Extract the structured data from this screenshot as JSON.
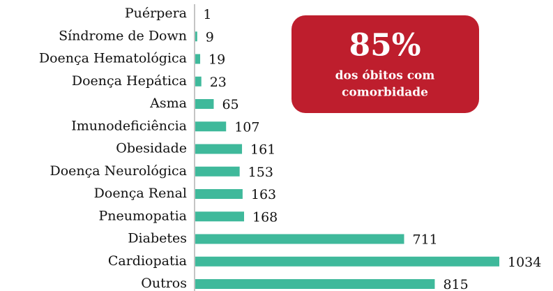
{
  "chart_data": {
    "type": "bar",
    "orientation": "horizontal",
    "categories": [
      "Puérpera",
      "Síndrome de Down",
      "Doença Hematológica",
      "Doença Hepática",
      "Asma",
      "Imunodeficiência",
      "Obesidade",
      "Doença Neurológica",
      "Doença Renal",
      "Pneumopatia",
      "Diabetes",
      "Cardiopatia",
      "Outros"
    ],
    "values": [
      1,
      9,
      19,
      23,
      65,
      107,
      161,
      153,
      163,
      168,
      711,
      1034,
      815
    ],
    "color": "#3fb99b",
    "annotation": {
      "headline": "85%",
      "lines": [
        "dos óbitos com",
        "comorbidade"
      ],
      "color": "#be1e2d"
    }
  }
}
